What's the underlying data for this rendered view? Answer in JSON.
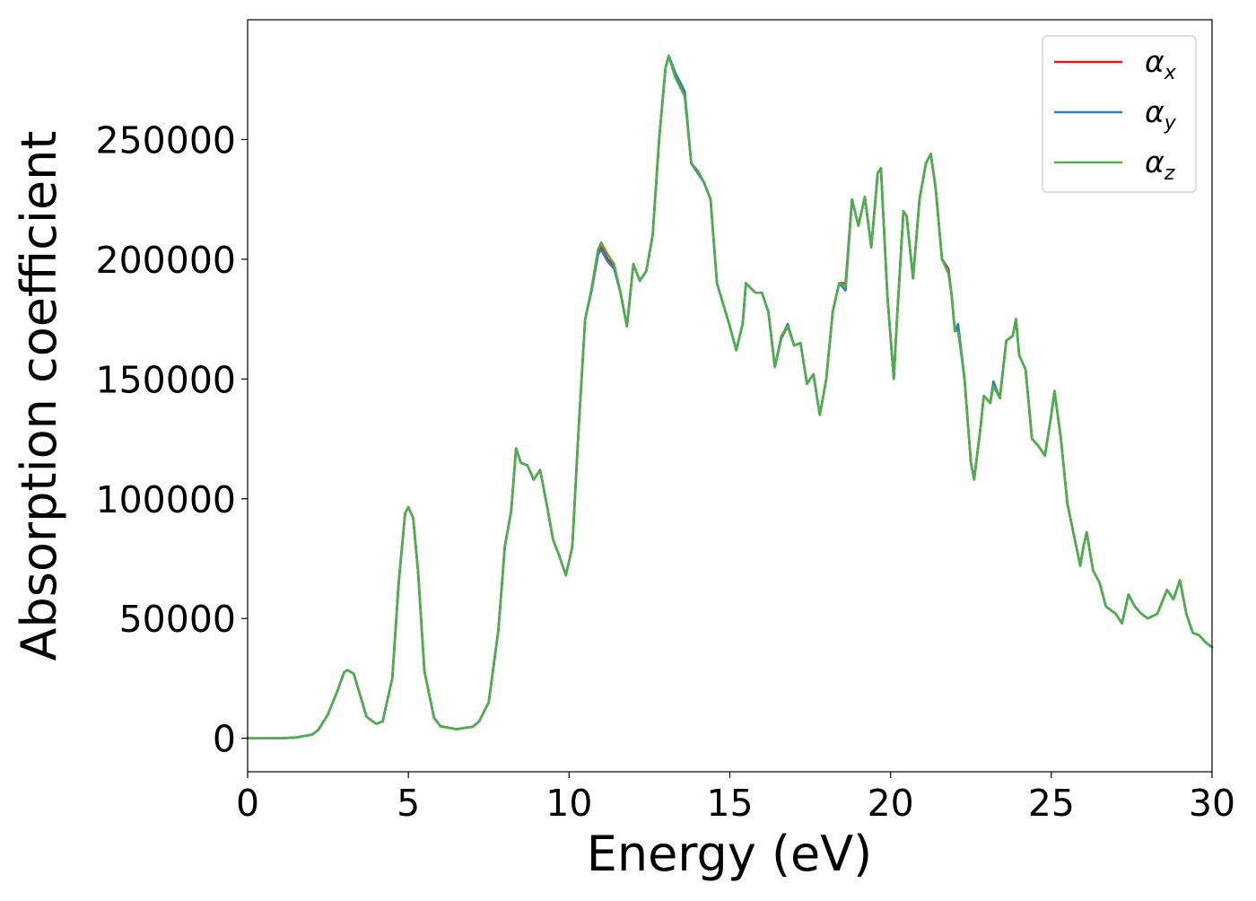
{
  "chart_data": {
    "type": "line",
    "title": "",
    "xlabel": "Energy (eV)",
    "ylabel": "Absorption coefficient",
    "xlim": [
      0,
      30
    ],
    "ylim": [
      -14000,
      300000
    ],
    "xticks": [
      0,
      5,
      10,
      15,
      20,
      25,
      30
    ],
    "yticks": [
      0,
      50000,
      100000,
      150000,
      200000,
      250000
    ],
    "grid": false,
    "legend_position": "top-right",
    "legend": [
      {
        "label": "α",
        "subscript": "x",
        "color": "#e41a1c"
      },
      {
        "label": "α",
        "subscript": "y",
        "color": "#377eb8"
      },
      {
        "label": "α",
        "subscript": "z",
        "color": "#4daf4a"
      }
    ],
    "x": [
      0,
      1,
      1.5,
      2.0,
      2.2,
      2.5,
      2.8,
      3.0,
      3.1,
      3.3,
      3.5,
      3.7,
      4.0,
      4.2,
      4.5,
      4.7,
      4.9,
      5.0,
      5.15,
      5.3,
      5.5,
      5.8,
      6.0,
      6.5,
      7.0,
      7.2,
      7.5,
      7.8,
      8.0,
      8.2,
      8.35,
      8.5,
      8.7,
      8.9,
      9.1,
      9.3,
      9.5,
      9.7,
      9.9,
      10.1,
      10.3,
      10.5,
      10.7,
      10.9,
      11.0,
      11.2,
      11.4,
      11.6,
      11.8,
      12.0,
      12.2,
      12.4,
      12.6,
      12.8,
      13.0,
      13.1,
      13.3,
      13.6,
      13.8,
      14.0,
      14.2,
      14.4,
      14.6,
      14.8,
      15.0,
      15.2,
      15.4,
      15.5,
      15.8,
      16.0,
      16.2,
      16.4,
      16.6,
      16.8,
      17.0,
      17.2,
      17.4,
      17.6,
      17.8,
      18.0,
      18.2,
      18.4,
      18.6,
      18.8,
      19.0,
      19.2,
      19.4,
      19.6,
      19.7,
      19.9,
      20.1,
      20.2,
      20.4,
      20.5,
      20.7,
      20.9,
      21.1,
      21.25,
      21.4,
      21.6,
      21.8,
      21.9,
      22.0,
      22.1,
      22.3,
      22.5,
      22.6,
      22.8,
      22.9,
      23.1,
      23.2,
      23.4,
      23.6,
      23.8,
      23.9,
      24.0,
      24.2,
      24.4,
      24.6,
      24.8,
      25.0,
      25.1,
      25.3,
      25.5,
      25.7,
      25.9,
      26.0,
      26.1,
      26.3,
      26.5,
      26.7,
      27.0,
      27.2,
      27.4,
      27.6,
      27.8,
      28.0,
      28.3,
      28.6,
      28.8,
      29.0,
      29.2,
      29.4,
      29.6,
      29.8,
      30.0
    ],
    "series": [
      {
        "name": "α_x",
        "color": "#e41a1c",
        "values": [
          0,
          0,
          300,
          1500,
          3500,
          10000,
          20000,
          27500,
          28500,
          27000,
          18000,
          9000,
          6000,
          7000,
          25000,
          65000,
          94000,
          96500,
          92000,
          70000,
          28000,
          8500,
          5000,
          3800,
          4800,
          7000,
          15000,
          45000,
          80000,
          95000,
          121000,
          115000,
          114000,
          108000,
          112000,
          98000,
          83000,
          76000,
          68000,
          80000,
          130000,
          175000,
          187000,
          202000,
          205000,
          200000,
          197000,
          186000,
          172000,
          198000,
          191000,
          195000,
          210000,
          250000,
          280000,
          285000,
          277000,
          268000,
          240000,
          237000,
          232000,
          225000,
          190000,
          181000,
          172000,
          162000,
          173000,
          190000,
          186000,
          186000,
          178000,
          155000,
          167000,
          172000,
          164000,
          165000,
          148000,
          152000,
          135000,
          150000,
          178000,
          190000,
          190000,
          225000,
          214000,
          226000,
          205000,
          236000,
          238000,
          185000,
          150000,
          175000,
          220000,
          218000,
          192000,
          225000,
          240000,
          244000,
          230000,
          200000,
          196000,
          185000,
          170000,
          172000,
          150000,
          115000,
          108000,
          130000,
          143000,
          140000,
          148000,
          142000,
          166000,
          168000,
          175000,
          160000,
          154000,
          125000,
          122000,
          118000,
          135000,
          145000,
          125000,
          98000,
          85000,
          72000,
          80000,
          86000,
          70000,
          65000,
          55000,
          52000,
          48000,
          60000,
          55000,
          52000,
          50000,
          52000,
          62000,
          58000,
          66000,
          52000,
          44000,
          43000,
          40000,
          38000
        ]
      },
      {
        "name": "α_y",
        "color": "#377eb8",
        "values": [
          0,
          0,
          300,
          1500,
          3500,
          10000,
          20000,
          27500,
          28500,
          27000,
          18000,
          9000,
          6000,
          7000,
          25000,
          65000,
          94000,
          96500,
          92000,
          70000,
          28000,
          8500,
          5000,
          3800,
          4800,
          7000,
          15000,
          45000,
          80000,
          95000,
          121000,
          115000,
          114000,
          108000,
          112000,
          98000,
          83000,
          76000,
          68000,
          80000,
          130000,
          175000,
          187000,
          202000,
          204000,
          199000,
          196000,
          186000,
          172000,
          198000,
          191000,
          195000,
          210000,
          250000,
          280000,
          285000,
          278000,
          270000,
          240000,
          236000,
          232000,
          225000,
          190000,
          181000,
          172000,
          162000,
          173000,
          190000,
          186000,
          186000,
          178000,
          155000,
          167000,
          173000,
          164000,
          165000,
          148000,
          152000,
          135000,
          150000,
          178000,
          190000,
          187000,
          225000,
          214000,
          226000,
          205000,
          236000,
          238000,
          185000,
          150000,
          175000,
          220000,
          218000,
          192000,
          225000,
          240000,
          244000,
          230000,
          200000,
          195000,
          185000,
          170000,
          173000,
          150000,
          115000,
          108000,
          130000,
          143000,
          140000,
          149000,
          142000,
          166000,
          168000,
          175000,
          160000,
          154000,
          125000,
          122000,
          118000,
          135000,
          145000,
          125000,
          98000,
          85000,
          72000,
          80000,
          86000,
          70000,
          65000,
          55000,
          52000,
          48000,
          60000,
          55000,
          52000,
          50000,
          52000,
          62000,
          58000,
          66000,
          52000,
          44000,
          43000,
          40000,
          38000
        ]
      },
      {
        "name": "α_z",
        "color": "#4daf4a",
        "values": [
          0,
          0,
          300,
          1500,
          3500,
          10000,
          20000,
          27500,
          28500,
          27000,
          18000,
          9000,
          6000,
          7000,
          25000,
          65000,
          94000,
          96500,
          92000,
          70000,
          28000,
          8500,
          5000,
          3800,
          4800,
          7000,
          15000,
          45000,
          80000,
          95000,
          121000,
          115000,
          114000,
          108000,
          112000,
          98000,
          83000,
          76000,
          68000,
          80000,
          130000,
          175000,
          188000,
          204000,
          207000,
          202000,
          198000,
          186000,
          172000,
          198000,
          191000,
          195000,
          210000,
          250000,
          280000,
          285000,
          276000,
          268000,
          240000,
          237000,
          232000,
          225000,
          190000,
          181000,
          172000,
          162000,
          173000,
          190000,
          186000,
          186000,
          178000,
          155000,
          168000,
          172000,
          164000,
          165000,
          148000,
          152000,
          135000,
          150000,
          178000,
          190000,
          189000,
          225000,
          214000,
          226000,
          205000,
          236000,
          238000,
          185000,
          150000,
          175000,
          220000,
          218000,
          192000,
          225000,
          240000,
          244000,
          230000,
          200000,
          194000,
          185000,
          170000,
          170000,
          150000,
          115000,
          108000,
          130000,
          143000,
          140000,
          147000,
          142000,
          166000,
          168000,
          175000,
          160000,
          154000,
          125000,
          122000,
          118000,
          135000,
          145000,
          125000,
          98000,
          85000,
          72000,
          80000,
          86000,
          70000,
          65000,
          55000,
          52000,
          48000,
          60000,
          55000,
          52000,
          50000,
          52000,
          62000,
          58000,
          66000,
          52000,
          44000,
          43000,
          40000,
          38000
        ]
      }
    ]
  }
}
